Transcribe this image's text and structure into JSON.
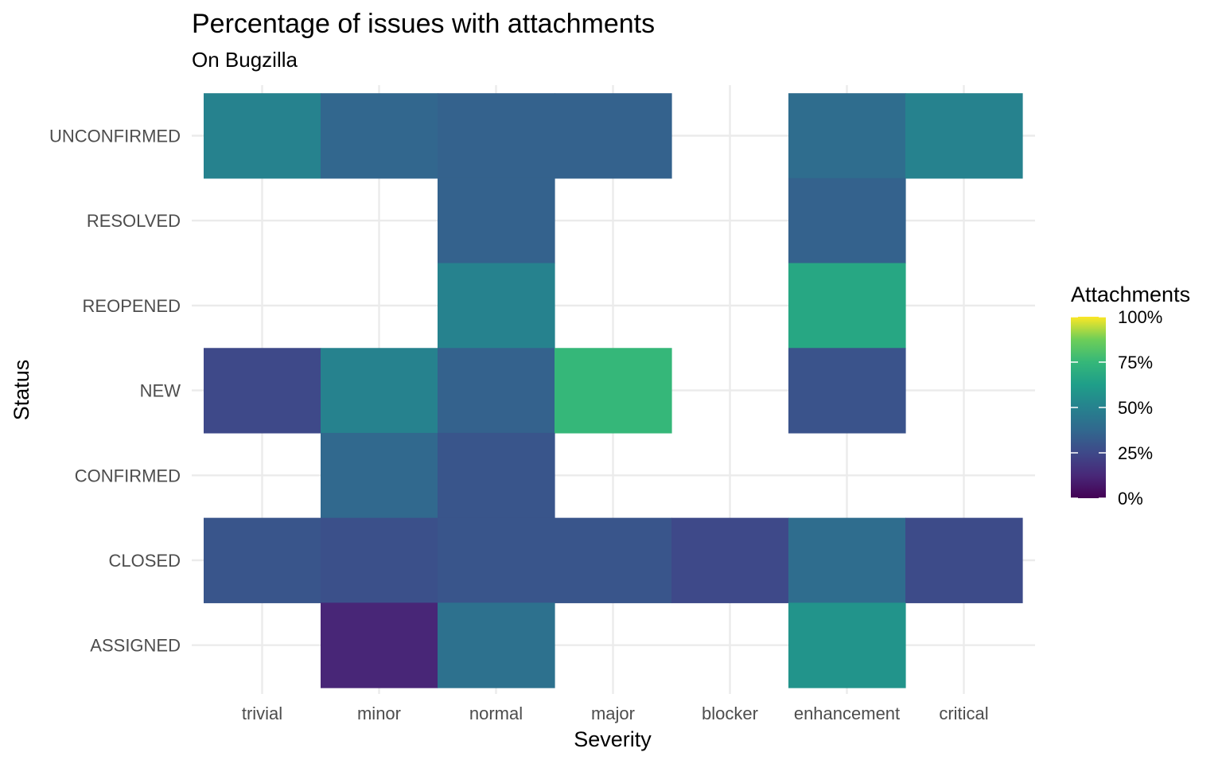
{
  "chart_data": {
    "type": "heatmap",
    "title": "Percentage of issues with attachments",
    "subtitle": "On Bugzilla",
    "xlabel": "Severity",
    "ylabel": "Status",
    "x_categories": [
      "trivial",
      "minor",
      "normal",
      "major",
      "blocker",
      "enhancement",
      "critical"
    ],
    "y_categories": [
      "UNCONFIRMED",
      "RESOLVED",
      "REOPENED",
      "NEW",
      "CONFIRMED",
      "CLOSED",
      "ASSIGNED"
    ],
    "cells": [
      {
        "x": "trivial",
        "y": "UNCONFIRMED",
        "value": 50
      },
      {
        "x": "minor",
        "y": "UNCONFIRMED",
        "value": 37
      },
      {
        "x": "normal",
        "y": "UNCONFIRMED",
        "value": 35
      },
      {
        "x": "major",
        "y": "UNCONFIRMED",
        "value": 35
      },
      {
        "x": "enhancement",
        "y": "UNCONFIRMED",
        "value": 40
      },
      {
        "x": "critical",
        "y": "UNCONFIRMED",
        "value": 50
      },
      {
        "x": "normal",
        "y": "RESOLVED",
        "value": 35
      },
      {
        "x": "enhancement",
        "y": "RESOLVED",
        "value": 35
      },
      {
        "x": "normal",
        "y": "REOPENED",
        "value": 50
      },
      {
        "x": "enhancement",
        "y": "REOPENED",
        "value": 67
      },
      {
        "x": "trivial",
        "y": "NEW",
        "value": 25
      },
      {
        "x": "minor",
        "y": "NEW",
        "value": 50
      },
      {
        "x": "normal",
        "y": "NEW",
        "value": 35
      },
      {
        "x": "major",
        "y": "NEW",
        "value": 75
      },
      {
        "x": "enhancement",
        "y": "NEW",
        "value": 29
      },
      {
        "x": "minor",
        "y": "CONFIRMED",
        "value": 38
      },
      {
        "x": "normal",
        "y": "CONFIRMED",
        "value": 30
      },
      {
        "x": "trivial",
        "y": "CLOSED",
        "value": 30
      },
      {
        "x": "minor",
        "y": "CLOSED",
        "value": 28
      },
      {
        "x": "normal",
        "y": "CLOSED",
        "value": 30
      },
      {
        "x": "major",
        "y": "CLOSED",
        "value": 30
      },
      {
        "x": "blocker",
        "y": "CLOSED",
        "value": 25
      },
      {
        "x": "enhancement",
        "y": "CLOSED",
        "value": 40
      },
      {
        "x": "critical",
        "y": "CLOSED",
        "value": 26
      },
      {
        "x": "minor",
        "y": "ASSIGNED",
        "value": 12
      },
      {
        "x": "normal",
        "y": "ASSIGNED",
        "value": 42
      },
      {
        "x": "enhancement",
        "y": "ASSIGNED",
        "value": 58
      }
    ],
    "color_scale": "viridis",
    "value_range": [
      0,
      100
    ],
    "legend": {
      "title": "Attachments",
      "position": "right",
      "breaks": [
        100,
        75,
        50,
        25,
        0
      ],
      "labels": [
        "100%",
        "75%",
        "50%",
        "25%",
        "0%"
      ]
    },
    "grid": true
  }
}
